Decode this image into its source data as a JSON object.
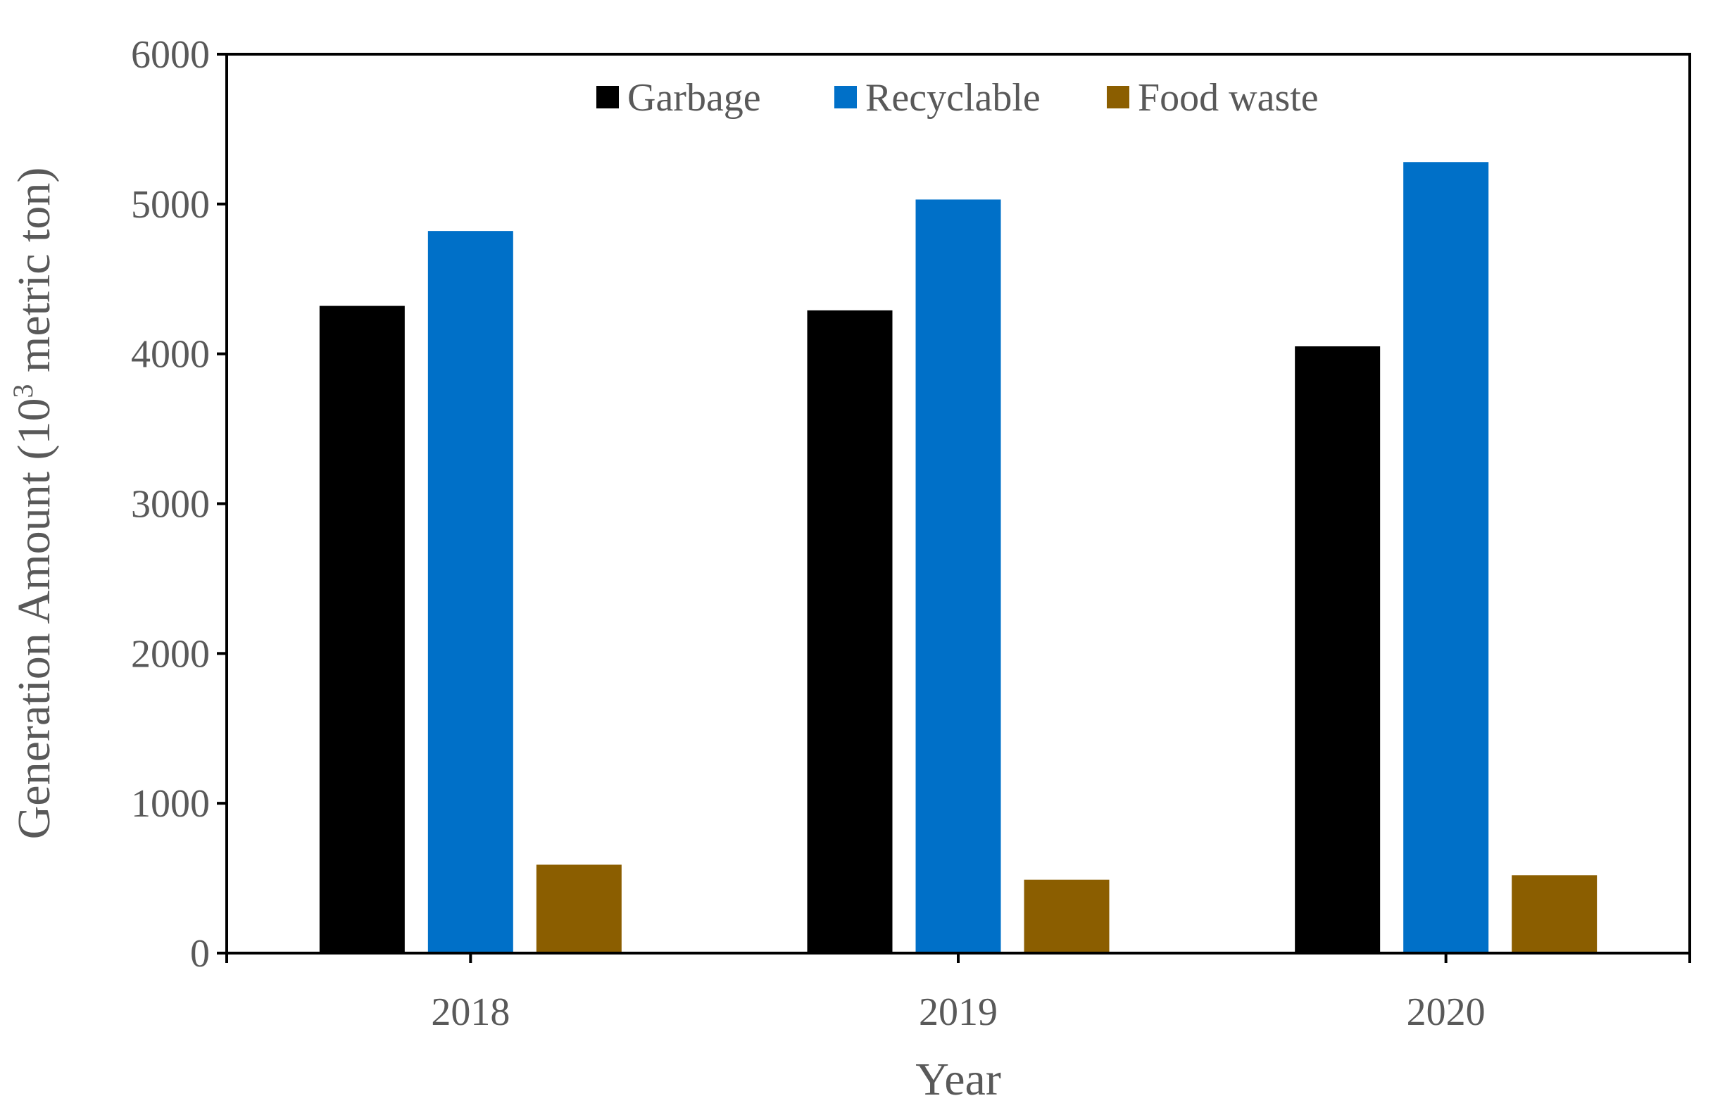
{
  "chart_data": {
    "type": "bar",
    "title": "",
    "categories": [
      "2018",
      "2019",
      "2020"
    ],
    "series": [
      {
        "name": "Garbage",
        "color": "#000000",
        "values": [
          4320,
          4290,
          4050
        ]
      },
      {
        "name": "Recyclable",
        "color": "#0070C8",
        "values": [
          4820,
          5030,
          5280
        ]
      },
      {
        "name": "Food waste",
        "color": "#8B5E00",
        "values": [
          590,
          490,
          520
        ]
      }
    ],
    "xlabel": "Year",
    "ylabel": {
      "prefix": "Generation Amount (10",
      "superscript": "3",
      "suffix": " metric ton)"
    },
    "ylim": [
      0,
      6000
    ],
    "yticks": [
      "0",
      "1000",
      "2000",
      "3000",
      "4000",
      "5000",
      "6000"
    ],
    "legend_position": "top-center",
    "grid": false
  }
}
